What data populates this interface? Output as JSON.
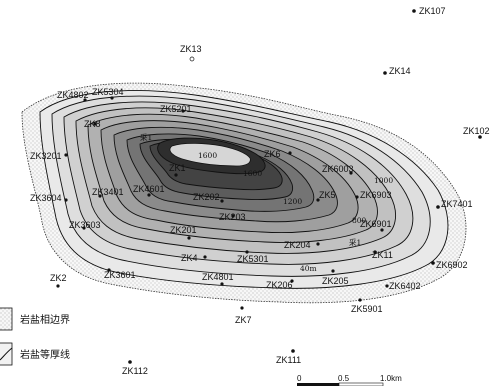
{
  "map": {
    "wells": [
      {
        "id": "ZK107"
      },
      {
        "id": "ZK13"
      },
      {
        "id": "ZK14"
      },
      {
        "id": "ZK4802"
      },
      {
        "id": "ZK5304"
      },
      {
        "id": "ZK5201"
      },
      {
        "id": "ZK8"
      },
      {
        "id": "ZK102"
      },
      {
        "id": "ZK3201"
      },
      {
        "id": "ZK6"
      },
      {
        "id": "ZK6003"
      },
      {
        "id": "ZK1"
      },
      {
        "id": "ZK4601"
      },
      {
        "id": "ZK5"
      },
      {
        "id": "ZK6903"
      },
      {
        "id": "ZK7401"
      },
      {
        "id": "ZK3604"
      },
      {
        "id": "ZK3401"
      },
      {
        "id": "ZK202"
      },
      {
        "id": "ZK3603"
      },
      {
        "id": "ZK203"
      },
      {
        "id": "ZK6901"
      },
      {
        "id": "ZK201"
      },
      {
        "id": "ZK204"
      },
      {
        "id": "ZK11"
      },
      {
        "id": "ZK4"
      },
      {
        "id": "ZK5301"
      },
      {
        "id": "ZK6902"
      },
      {
        "id": "ZK2"
      },
      {
        "id": "ZK3601"
      },
      {
        "id": "ZK4801"
      },
      {
        "id": "ZK206"
      },
      {
        "id": "ZK205"
      },
      {
        "id": "ZK6402"
      },
      {
        "id": "ZK5901"
      },
      {
        "id": "ZK7"
      },
      {
        "id": "ZK111"
      },
      {
        "id": "ZK112"
      }
    ],
    "contour_values": [
      "40m",
      "1600",
      "1200",
      "800",
      "1000",
      "采1",
      "采1"
    ],
    "legend": [
      {
        "key": "facies-boundary",
        "label": "岩盐相边界"
      },
      {
        "key": "isopach",
        "label": "岩盐等厚线"
      }
    ],
    "scale": {
      "ticks": [
        "0",
        "0.5",
        "1.0km"
      ]
    },
    "colors": {
      "shade_outer": "#f2f2f2",
      "shade_inner": "#2e2e2e",
      "ink": "#111111"
    }
  }
}
